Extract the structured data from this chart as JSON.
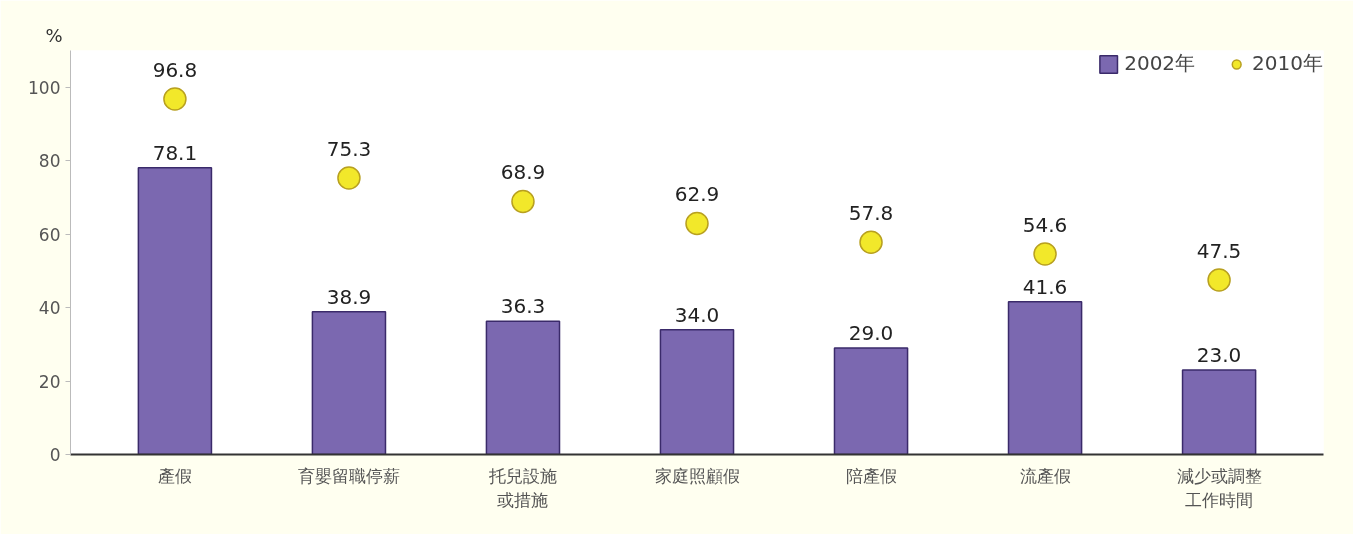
{
  "chart_data": {
    "type": "bar",
    "ylabel": "%",
    "categories": [
      "產假",
      "育嬰留職停薪",
      "托兒設施或措施",
      "家庭照顧假",
      "陪產假",
      "流產假",
      "減少或調整工作時間"
    ],
    "series": [
      {
        "name": "2002年",
        "color": "#7b68b0",
        "values": [
          78.1,
          38.9,
          36.3,
          34.0,
          29.0,
          41.6,
          23.0
        ],
        "value_labels": [
          "78.1",
          "38.9",
          "36.3",
          "34.0",
          "29.0",
          "41.6",
          "23.0"
        ]
      },
      {
        "name": "2010年",
        "type": "scatter",
        "color": "#f2e82a",
        "values": [
          96.8,
          75.3,
          68.9,
          62.9,
          57.8,
          54.6,
          47.5
        ],
        "value_labels": [
          "96.8",
          "75.3",
          "68.9",
          "62.9",
          "57.8",
          "54.6",
          "47.5"
        ]
      }
    ],
    "ylim": [
      0,
      110
    ],
    "yticks": [
      0,
      20,
      40,
      60,
      80,
      100
    ],
    "grid": false,
    "legend": "top right",
    "marker": "circle"
  }
}
